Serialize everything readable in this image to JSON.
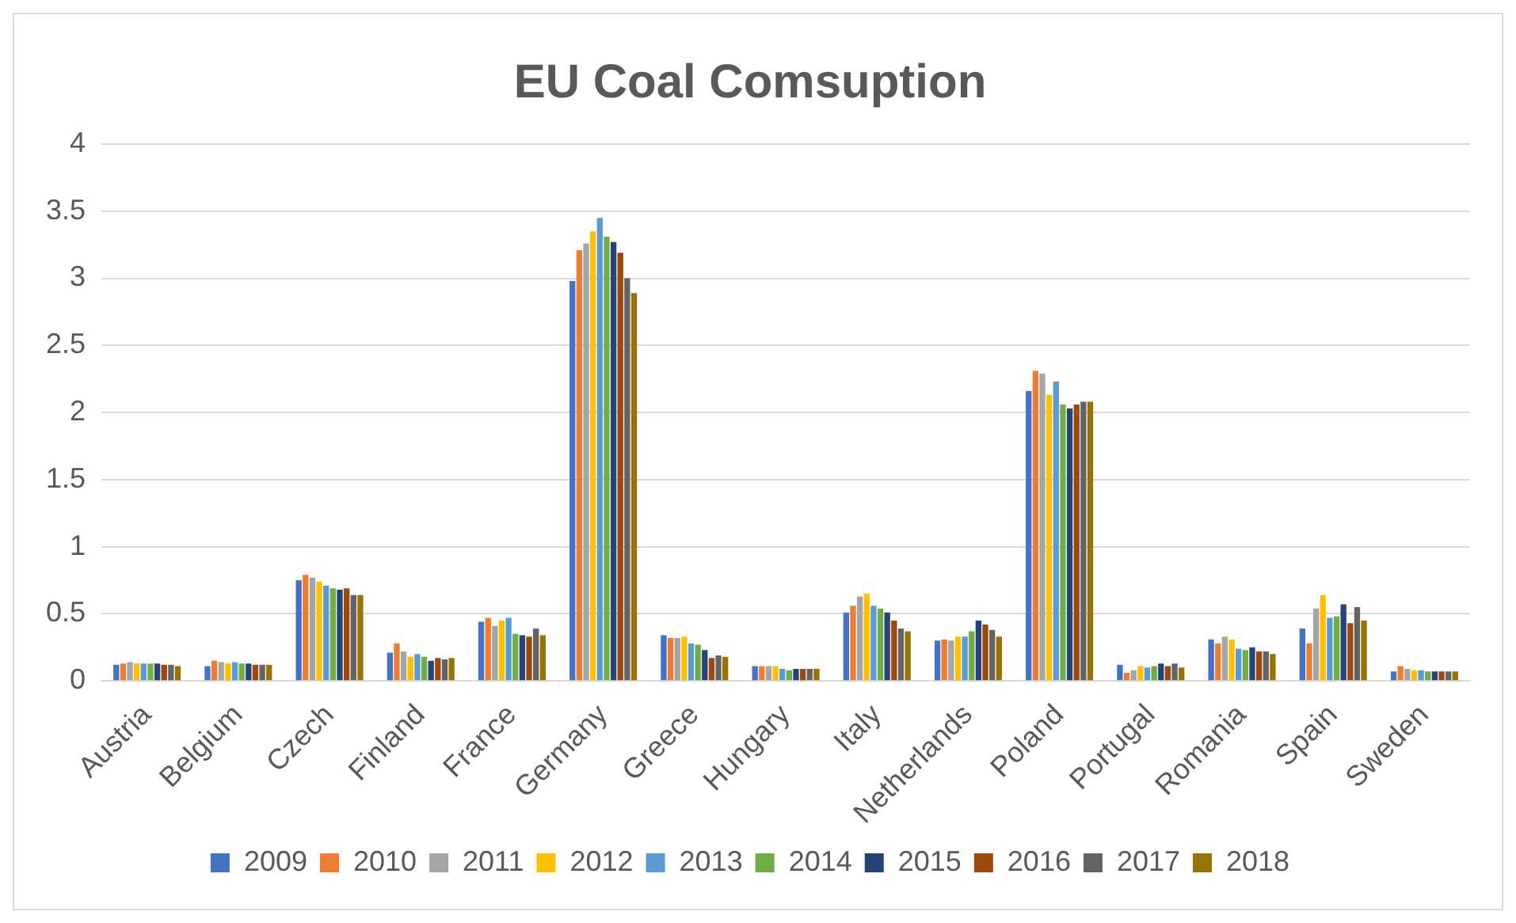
{
  "chart_data": {
    "type": "bar",
    "title": "EU Coal Comsuption",
    "categories": [
      "Austria",
      "Belgium",
      "Czech",
      "Finland",
      "France",
      "Germany",
      "Greece",
      "Hungary",
      "Italy",
      "Netherlands",
      "Poland",
      "Portugal",
      "Romania",
      "Spain",
      "Sweden"
    ],
    "series": [
      {
        "name": "2009",
        "color": "#4472c4",
        "values": [
          0.12,
          0.11,
          0.75,
          0.21,
          0.44,
          2.98,
          0.34,
          0.11,
          0.51,
          0.3,
          2.16,
          0.12,
          0.31,
          0.39,
          0.07
        ]
      },
      {
        "name": "2010",
        "color": "#ed7d31",
        "values": [
          0.13,
          0.15,
          0.79,
          0.28,
          0.47,
          3.21,
          0.32,
          0.11,
          0.56,
          0.31,
          2.31,
          0.06,
          0.28,
          0.28,
          0.11
        ]
      },
      {
        "name": "2011",
        "color": "#a5a5a5",
        "values": [
          0.14,
          0.14,
          0.77,
          0.22,
          0.41,
          3.26,
          0.32,
          0.11,
          0.63,
          0.3,
          2.29,
          0.08,
          0.33,
          0.54,
          0.09
        ]
      },
      {
        "name": "2012",
        "color": "#ffc000",
        "values": [
          0.13,
          0.13,
          0.74,
          0.18,
          0.45,
          3.35,
          0.33,
          0.11,
          0.65,
          0.33,
          2.13,
          0.11,
          0.31,
          0.64,
          0.08
        ]
      },
      {
        "name": "2013",
        "color": "#5b9bd5",
        "values": [
          0.13,
          0.14,
          0.71,
          0.2,
          0.47,
          3.45,
          0.28,
          0.09,
          0.56,
          0.33,
          2.23,
          0.1,
          0.24,
          0.47,
          0.08
        ]
      },
      {
        "name": "2014",
        "color": "#70ad47",
        "values": [
          0.13,
          0.13,
          0.69,
          0.18,
          0.35,
          3.31,
          0.27,
          0.08,
          0.54,
          0.37,
          2.06,
          0.11,
          0.23,
          0.48,
          0.07
        ]
      },
      {
        "name": "2015",
        "color": "#264478",
        "values": [
          0.13,
          0.13,
          0.68,
          0.15,
          0.34,
          3.27,
          0.23,
          0.09,
          0.51,
          0.45,
          2.03,
          0.13,
          0.25,
          0.57,
          0.07
        ]
      },
      {
        "name": "2016",
        "color": "#9e480e",
        "values": [
          0.12,
          0.12,
          0.69,
          0.17,
          0.33,
          3.19,
          0.17,
          0.09,
          0.45,
          0.42,
          2.06,
          0.11,
          0.22,
          0.43,
          0.07
        ]
      },
      {
        "name": "2017",
        "color": "#636363",
        "values": [
          0.12,
          0.12,
          0.64,
          0.16,
          0.39,
          3.0,
          0.19,
          0.09,
          0.39,
          0.38,
          2.08,
          0.13,
          0.22,
          0.55,
          0.07
        ]
      },
      {
        "name": "2018",
        "color": "#997300",
        "values": [
          0.11,
          0.12,
          0.64,
          0.17,
          0.34,
          2.89,
          0.18,
          0.09,
          0.37,
          0.33,
          2.08,
          0.1,
          0.2,
          0.45,
          0.07
        ]
      }
    ],
    "ylim": [
      0,
      4
    ],
    "yticks": [
      0,
      0.5,
      1,
      1.5,
      2,
      2.5,
      3,
      3.5,
      4
    ],
    "grid": "y",
    "legend": "bottom"
  }
}
